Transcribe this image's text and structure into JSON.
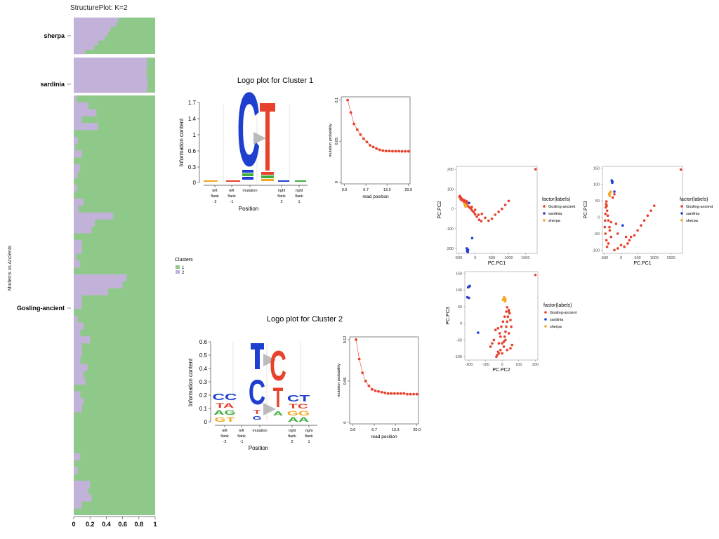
{
  "structure_plot": {
    "title": "StructurePlot: K=2",
    "ylabel": "Moderns vs Ancients",
    "x_ticks": [
      "0",
      "0.2",
      "0.4",
      "0.6",
      "0.8",
      "1"
    ],
    "groups": [
      "sherpa",
      "sardinia",
      "Gosling-ancient"
    ],
    "legend_title": "Clusters",
    "legend_items": [
      "1",
      "2"
    ],
    "colors": {
      "cluster1": "#8fc98a",
      "cluster2": "#c2b2d9"
    }
  },
  "logo_plots": [
    {
      "title": "Logo plot for Cluster 1",
      "ylabel": "Information content",
      "xlabel": "Position",
      "y_ticks": [
        "0",
        "0.3",
        "0.6",
        "1",
        "1.4",
        "1.7"
      ],
      "position_labels": [
        [
          "left",
          "flank",
          "-2"
        ],
        [
          "left",
          "flank",
          "-1"
        ],
        [
          "mutation"
        ],
        [
          "right",
          "flank",
          "2"
        ],
        [
          "right",
          "flank",
          "1"
        ]
      ]
    },
    {
      "title": "Logo plot for Cluster 2",
      "ylabel": "Information content",
      "xlabel": "Position",
      "y_ticks": [
        "0",
        "0.1",
        "0.2",
        "0.3",
        "0.4",
        "0.5",
        "0.6"
      ],
      "position_labels": [
        [
          "left",
          "flank",
          "-2"
        ],
        [
          "left",
          "flank",
          "-1"
        ],
        [
          "mutation"
        ],
        [
          "right",
          "flank",
          "2"
        ],
        [
          "right",
          "flank",
          "1"
        ]
      ]
    }
  ],
  "pca_legend": {
    "title": "factor(labels)",
    "labels": [
      "Gosling-ancient",
      "sardinia",
      "sherpa"
    ],
    "colors": [
      "#e8412c",
      "#1f3fcf",
      "#f5a623"
    ]
  },
  "chart_data": [
    {
      "type": "bar",
      "orientation": "horizontal-stacked",
      "title": "StructurePlot: K=2",
      "ylabel": "Moderns vs Ancients",
      "xlim": [
        0,
        1
      ],
      "series": [
        {
          "name": "1"
        },
        {
          "name": "2"
        }
      ],
      "groups": [
        {
          "name": "sherpa",
          "cluster2": [
            0.55,
            0.52,
            0.45,
            0.42,
            0.38,
            0.3,
            0.25,
            0.14
          ]
        },
        {
          "name": "sardinia",
          "cluster2": [
            0.9,
            0.9,
            0.89,
            0.9,
            0.91,
            0.9
          ]
        },
        {
          "name": "Gosling-ancient",
          "cluster2": [
            0.04,
            0.18,
            0.28,
            0.1,
            0.3,
            0.0,
            0.05,
            0.02,
            0.1,
            0.0,
            0.08,
            0.05,
            0.0,
            0.04,
            0.0,
            0.12,
            0.06,
            0.48,
            0.26,
            0.22,
            0.0,
            0.1,
            0.1,
            0.03,
            0.08,
            0.0,
            0.65,
            0.6,
            0.42,
            0.1,
            0.1,
            0.0,
            0.05,
            0.12,
            0.08,
            0.2,
            0.1,
            0.1,
            0.08,
            0.17,
            0.12,
            0.14,
            0.0,
            0.08,
            0.12,
            0.1,
            0.0,
            0.0,
            0.0,
            0.0,
            0.0,
            0.0,
            0.08,
            0.0,
            0.05,
            0.0,
            0.2,
            0.18,
            0.22,
            0.1,
            0.0
          ]
        }
      ]
    },
    {
      "type": "scatter",
      "xlabel": "read position",
      "ylabel": "mutation probability",
      "x_ticks": [
        0,
        6.7,
        13.3,
        20
      ],
      "y_ticks": [
        0,
        0.05,
        0.1
      ],
      "xlim": [
        -1,
        20.5
      ],
      "ylim": [
        -0.002,
        0.104
      ],
      "x": [
        1,
        2,
        3,
        4,
        5,
        6,
        7,
        8,
        9,
        10,
        11,
        12,
        13,
        14,
        15,
        16,
        17,
        18,
        19,
        20
      ],
      "y": [
        0.1,
        0.085,
        0.071,
        0.064,
        0.058,
        0.053,
        0.049,
        0.045,
        0.043,
        0.041,
        0.0395,
        0.0385,
        0.038,
        0.038,
        0.0378,
        0.0378,
        0.0378,
        0.0376,
        0.0376,
        0.0376
      ]
    },
    {
      "type": "scatter",
      "xlabel": "read position",
      "ylabel": "mutation probability",
      "x_ticks": [
        0,
        6.7,
        13.3,
        20
      ],
      "y_ticks": [
        0,
        0.06,
        0.12
      ],
      "xlim": [
        -1,
        20.5
      ],
      "ylim": [
        -0.002,
        0.124
      ],
      "x": [
        1,
        2,
        3,
        4,
        5,
        6,
        7,
        8,
        9,
        10,
        11,
        12,
        13,
        14,
        15,
        16,
        17,
        18,
        19,
        20
      ],
      "y": [
        0.12,
        0.092,
        0.072,
        0.06,
        0.053,
        0.048,
        0.046,
        0.045,
        0.044,
        0.043,
        0.042,
        0.042,
        0.042,
        0.042,
        0.042,
        0.042,
        0.041,
        0.041,
        0.041,
        0.041
      ]
    },
    {
      "type": "scatter",
      "xlabel": "PC.PC1",
      "ylabel": "PC.PC2",
      "x_ticks": [
        -500,
        0,
        500,
        1000,
        1500
      ],
      "y_ticks": [
        -200,
        -100,
        0,
        100,
        200
      ],
      "xlim": [
        -560,
        1850
      ],
      "ylim": [
        -225,
        215
      ],
      "series": [
        {
          "name": "Gosling-ancient",
          "points": [
            [
              1800,
              200
            ],
            [
              1000,
              40
            ],
            [
              900,
              20
            ],
            [
              800,
              0
            ],
            [
              700,
              -15
            ],
            [
              600,
              -30
            ],
            [
              500,
              -50
            ],
            [
              400,
              -60
            ],
            [
              300,
              -45
            ],
            [
              200,
              -25
            ],
            [
              100,
              -30
            ],
            [
              0,
              -5
            ],
            [
              -100,
              10
            ],
            [
              -200,
              30
            ],
            [
              -250,
              38
            ],
            [
              -300,
              42
            ],
            [
              -350,
              46
            ],
            [
              -400,
              50
            ],
            [
              -420,
              55
            ],
            [
              -440,
              58
            ],
            [
              -450,
              62
            ],
            [
              -460,
              65
            ],
            [
              -470,
              60
            ],
            [
              -430,
              48
            ],
            [
              -380,
              42
            ],
            [
              -330,
              36
            ],
            [
              -280,
              28
            ],
            [
              -240,
              20
            ],
            [
              -200,
              12
            ],
            [
              -160,
              5
            ],
            [
              -120,
              -2
            ],
            [
              -80,
              -10
            ],
            [
              -40,
              -18
            ],
            [
              0,
              -28
            ],
            [
              50,
              -40
            ],
            [
              120,
              -55
            ],
            [
              180,
              -62
            ]
          ]
        },
        {
          "name": "sardinia",
          "points": [
            [
              -250,
              -200
            ],
            [
              -230,
              -205
            ],
            [
              -210,
              -208
            ],
            [
              -240,
              -214
            ],
            [
              -220,
              -218
            ],
            [
              -90,
              -148
            ],
            [
              -180,
              30
            ]
          ]
        },
        {
          "name": "sherpa",
          "points": [
            [
              -300,
              20
            ],
            [
              -280,
              18
            ],
            [
              -320,
              25
            ],
            [
              -260,
              15
            ],
            [
              -290,
              12
            ],
            [
              -310,
              22
            ]
          ]
        }
      ]
    },
    {
      "type": "scatter",
      "xlabel": "PC.PC1",
      "ylabel": "PC.PC3",
      "x_ticks": [
        -500,
        0,
        500,
        1000,
        1500
      ],
      "y_ticks": [
        -100,
        -50,
        0,
        50,
        100,
        150
      ],
      "xlim": [
        -560,
        1850
      ],
      "ylim": [
        -110,
        155
      ],
      "series": [
        {
          "name": "Gosling-ancient",
          "points": [
            [
              1800,
              145
            ],
            [
              1000,
              35
            ],
            [
              900,
              20
            ],
            [
              800,
              5
            ],
            [
              700,
              -10
            ],
            [
              600,
              -25
            ],
            [
              500,
              -40
            ],
            [
              400,
              -55
            ],
            [
              300,
              -60
            ],
            [
              200,
              -80
            ],
            [
              100,
              -90
            ],
            [
              0,
              -85
            ],
            [
              -100,
              -95
            ],
            [
              -200,
              -100
            ],
            [
              -300,
              -60
            ],
            [
              -350,
              -30
            ],
            [
              -380,
              -10
            ],
            [
              -400,
              5
            ],
            [
              -420,
              20
            ],
            [
              -430,
              35
            ],
            [
              -440,
              48
            ],
            [
              -450,
              40
            ],
            [
              -460,
              30
            ],
            [
              -470,
              10
            ],
            [
              -480,
              -10
            ],
            [
              -490,
              -30
            ],
            [
              -470,
              -50
            ],
            [
              -440,
              -70
            ],
            [
              -420,
              -90
            ],
            [
              -380,
              -80
            ],
            [
              -340,
              -40
            ],
            [
              -300,
              -15
            ],
            [
              -250,
              60
            ],
            [
              -200,
              70
            ],
            [
              -150,
              -20
            ],
            [
              -100,
              -50
            ],
            [
              150,
              -60
            ],
            [
              250,
              -70
            ]
          ]
        },
        {
          "name": "sardinia",
          "points": [
            [
              -270,
              110
            ],
            [
              -260,
              108
            ],
            [
              -280,
              112
            ],
            [
              -265,
              105
            ],
            [
              -200,
              78
            ],
            [
              50,
              -25
            ]
          ]
        },
        {
          "name": "sherpa",
          "points": [
            [
              -350,
              72
            ],
            [
              -330,
              74
            ],
            [
              -310,
              78
            ],
            [
              -360,
              70
            ],
            [
              -320,
              76
            ],
            [
              -340,
              65
            ]
          ]
        }
      ]
    },
    {
      "type": "scatter",
      "xlabel": "PC.PC2",
      "ylabel": "PC.PC3",
      "x_ticks": [
        -200,
        -100,
        0,
        100,
        200
      ],
      "y_ticks": [
        -100,
        -50,
        0,
        50,
        100,
        150
      ],
      "xlim": [
        -225,
        215
      ],
      "ylim": [
        -110,
        155
      ],
      "series": [
        {
          "name": "Gosling-ancient",
          "points": [
            [
              200,
              145
            ],
            [
              40,
              35
            ],
            [
              35,
              20
            ],
            [
              30,
              5
            ],
            [
              25,
              -10
            ],
            [
              20,
              -25
            ],
            [
              15,
              -40
            ],
            [
              10,
              -55
            ],
            [
              0,
              -60
            ],
            [
              -10,
              -80
            ],
            [
              -20,
              -90
            ],
            [
              -25,
              -85
            ],
            [
              -30,
              -95
            ],
            [
              -35,
              -100
            ],
            [
              -20,
              -60
            ],
            [
              -15,
              -30
            ],
            [
              -5,
              -10
            ],
            [
              5,
              5
            ],
            [
              15,
              20
            ],
            [
              25,
              35
            ],
            [
              30,
              48
            ],
            [
              40,
              40
            ],
            [
              45,
              30
            ],
            [
              50,
              10
            ],
            [
              55,
              -10
            ],
            [
              40,
              -30
            ],
            [
              20,
              -50
            ],
            [
              10,
              -70
            ],
            [
              0,
              -90
            ],
            [
              30,
              -80
            ],
            [
              -10,
              -40
            ],
            [
              -25,
              -15
            ],
            [
              -40,
              -20
            ],
            [
              -50,
              -50
            ],
            [
              -60,
              -60
            ],
            [
              -70,
              -70
            ],
            [
              60,
              -65
            ],
            [
              50,
              -75
            ]
          ]
        },
        {
          "name": "sardinia",
          "points": [
            [
              -200,
              110
            ],
            [
              -205,
              108
            ],
            [
              -195,
              112
            ],
            [
              -210,
              78
            ],
            [
              -200,
              76
            ],
            [
              -145,
              -28
            ]
          ]
        },
        {
          "name": "sherpa",
          "points": [
            [
              10,
              75
            ],
            [
              15,
              73
            ],
            [
              20,
              72
            ],
            [
              5,
              70
            ],
            [
              12,
              78
            ],
            [
              18,
              66
            ]
          ]
        }
      ]
    }
  ]
}
